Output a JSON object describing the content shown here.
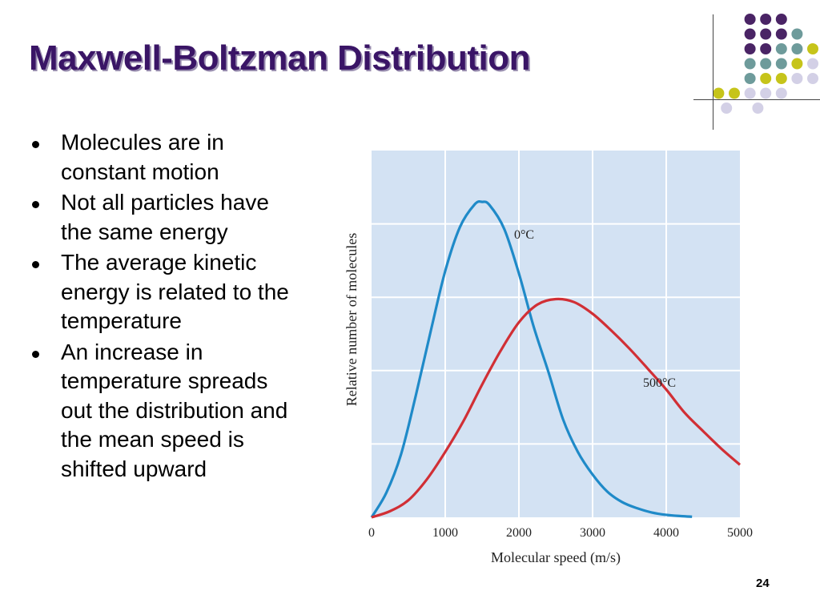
{
  "slide": {
    "title": "Maxwell-Boltzman Distribution",
    "number": "24",
    "title_color": "#3a1566",
    "decoration": {
      "icon": "dot-grid-icon",
      "colors": {
        "purple": "#4a2465",
        "teal": "#6e9b9b",
        "yellow": "#c6c41a",
        "lavender": "#d3d0e6"
      }
    }
  },
  "bullets": [
    {
      "text": "Molecules are in constant motion"
    },
    {
      "text": "Not all particles have the same energy"
    },
    {
      "text": "The average kinetic energy is related to the temperature"
    },
    {
      "text": "An increase in temperature spreads out the distribution and the mean speed is shifted upward"
    }
  ],
  "chart_data": {
    "type": "line",
    "title": "",
    "xlabel": "Molecular speed (m/s)",
    "ylabel": "Relative number of molecules",
    "xlim": [
      0,
      5000
    ],
    "ylim": [
      0,
      6
    ],
    "x_ticks": [
      0,
      1000,
      2000,
      3000,
      4000,
      5000
    ],
    "grid": true,
    "plot_background": "#d3e2f3",
    "series": [
      {
        "name": "0°C",
        "color": "#1f8ac8",
        "x": [
          0,
          200,
          400,
          600,
          800,
          1000,
          1200,
          1400,
          1500,
          1600,
          1800,
          2000,
          2200,
          2400,
          2600,
          2800,
          3000,
          3200,
          3400,
          3600,
          3800,
          4000,
          4200,
          4350
        ],
        "y": [
          0,
          0.4,
          1.03,
          1.99,
          3.03,
          4.03,
          4.75,
          5.12,
          5.16,
          5.11,
          4.72,
          3.99,
          3.12,
          2.38,
          1.6,
          1.07,
          0.7,
          0.42,
          0.25,
          0.15,
          0.08,
          0.04,
          0.02,
          0.01
        ]
      },
      {
        "name": "500°C",
        "color": "#d12f35",
        "x": [
          0,
          250,
          500,
          750,
          1000,
          1250,
          1500,
          1750,
          2000,
          2250,
          2500,
          2750,
          3000,
          3250,
          3500,
          3750,
          4000,
          4250,
          4500,
          4750,
          5000
        ],
        "y": [
          0,
          0.1,
          0.28,
          0.62,
          1.07,
          1.58,
          2.17,
          2.72,
          3.19,
          3.48,
          3.57,
          3.52,
          3.33,
          3.06,
          2.76,
          2.43,
          2.09,
          1.71,
          1.41,
          1.12,
          0.86
        ]
      }
    ]
  }
}
